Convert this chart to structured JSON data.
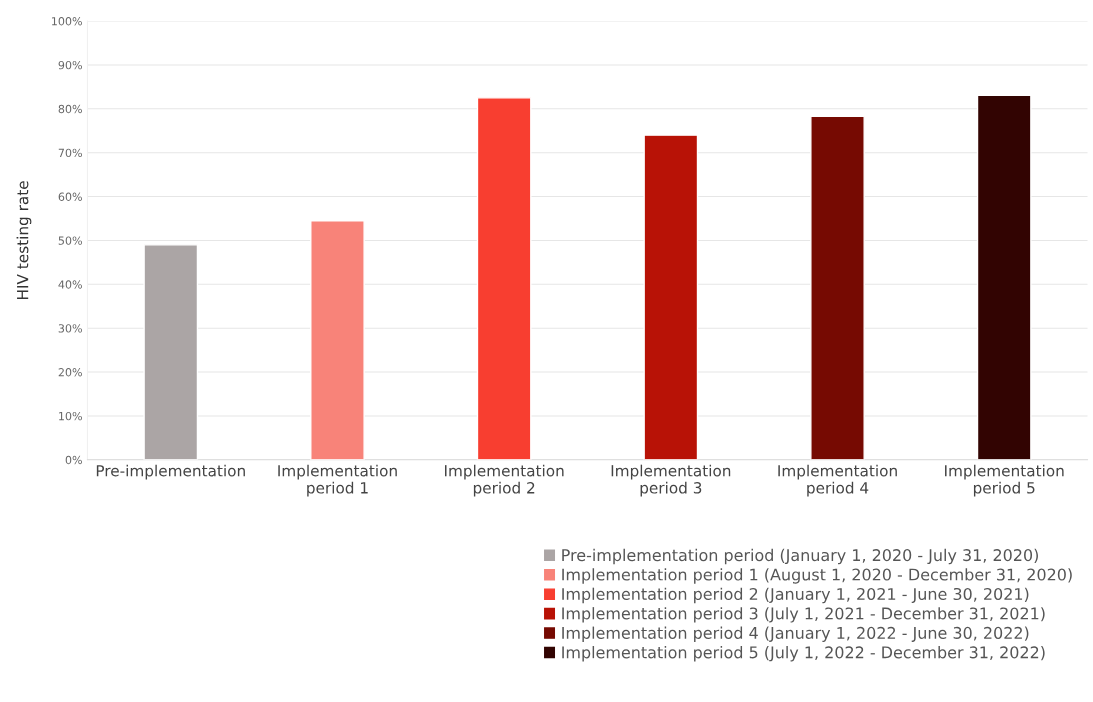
{
  "chart_data": {
    "type": "bar",
    "ylabel": "HIV testing rate",
    "categories": [
      "Pre-implementation",
      "Implementation\nperiod 1",
      "Implementation\nperiod 2",
      "Implementation\nperiod 3",
      "Implementation\nperiod 4",
      "Implementation\nperiod 5"
    ],
    "series": [
      {
        "name": "Pre-implementation period (January 1, 2020 - July 31, 2020)",
        "color": "#aba5a5",
        "values": [
          49.0,
          null,
          null,
          null,
          null,
          null
        ]
      },
      {
        "name": "Implementation period 1 (August 1, 2020 - December 31, 2020)",
        "color": "#f88379",
        "values": [
          null,
          54.5,
          null,
          null,
          null,
          null
        ]
      },
      {
        "name": "Implementation period 2 (January 1, 2021 - June 30, 2021)",
        "color": "#f83e30",
        "values": [
          null,
          null,
          82.5,
          null,
          null,
          null
        ]
      },
      {
        "name": "Implementation period 3 (July 1, 2021 - December 31, 2021)",
        "color": "#b81206",
        "values": [
          null,
          null,
          null,
          74.0,
          null,
          null
        ]
      },
      {
        "name": "Implementation period 4 (January 1, 2022 - June 30, 2022)",
        "color": "#760a02",
        "values": [
          null,
          null,
          null,
          null,
          78.3,
          null
        ]
      },
      {
        "name": "Implementation period 5 (July 1, 2022 - December 31, 2022)",
        "color": "#320402",
        "values": [
          null,
          null,
          null,
          null,
          null,
          83.1
        ]
      }
    ],
    "ylim": [
      0,
      100
    ],
    "yticks": [
      {
        "value": 0,
        "label": "0%"
      },
      {
        "value": 10,
        "label": "10%"
      },
      {
        "value": 20,
        "label": "20%"
      },
      {
        "value": 30,
        "label": "30%"
      },
      {
        "value": 40,
        "label": "40%"
      },
      {
        "value": 50,
        "label": "50%"
      },
      {
        "value": 60,
        "label": "60%"
      },
      {
        "value": 70,
        "label": "70%"
      },
      {
        "value": 80,
        "label": "80%"
      },
      {
        "value": 90,
        "label": "90%"
      },
      {
        "value": 100,
        "label": "100%"
      }
    ],
    "grid": "y",
    "legend": "bottom right"
  }
}
